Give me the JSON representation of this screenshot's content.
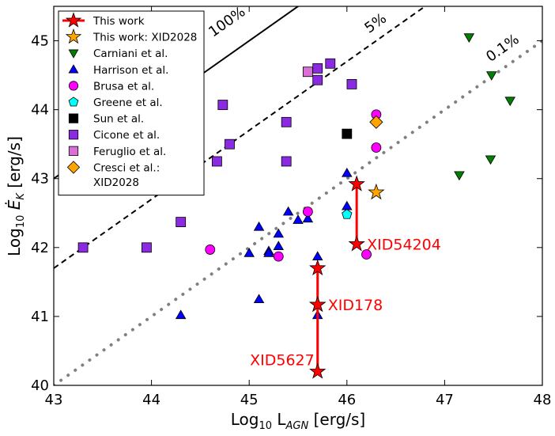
{
  "chart_data": {
    "type": "scatter",
    "xlabel_main": "Log",
    "xlabel_sub": "10",
    "xlabel_rest": " L",
    "xlabel_agn": "AGN",
    "xlabel_units": " [erg/s]",
    "ylabel_main": "Log",
    "ylabel_sub": "10",
    "ylabel_e": " Ė",
    "ylabel_k": "K",
    "ylabel_units": " [erg/s]",
    "xlim": [
      43,
      48
    ],
    "ylim": [
      40,
      45.5
    ],
    "xticks": [
      43,
      44,
      45,
      46,
      47,
      48
    ],
    "yticks": [
      40,
      41,
      42,
      43,
      44,
      45
    ],
    "lines": [
      {
        "name": "100%",
        "label": "100%",
        "offset": 0,
        "style": "solid"
      },
      {
        "name": "5%",
        "label": "5%",
        "offset": -1.3,
        "style": "dashed"
      },
      {
        "name": "0.1%",
        "label": "0.1%",
        "offset": -3.0,
        "style": "dotted"
      }
    ],
    "legend": [
      {
        "label": "This work",
        "marker": "star",
        "color": "#ff0000",
        "line": true
      },
      {
        "label": "This work: XID2028",
        "marker": "star",
        "color": "#ffa500"
      },
      {
        "label": "Carniani et al.",
        "marker": "tri-down",
        "color": "#008000"
      },
      {
        "label": "Harrison et al.",
        "marker": "tri-up",
        "color": "#0000ff"
      },
      {
        "label": "Brusa et al.",
        "marker": "circle",
        "color": "#ff00ff"
      },
      {
        "label": "Greene et al.",
        "marker": "pentagon",
        "color": "#00ffff"
      },
      {
        "label": "Sun et al.",
        "marker": "square",
        "color": "#000000"
      },
      {
        "label": "Cicone et al.",
        "marker": "square",
        "color": "#8a2be2"
      },
      {
        "label": "Feruglio et al.",
        "marker": "square",
        "color": "#da70d6"
      },
      {
        "label": "Cresci et al.:",
        "label2": " XID2028",
        "marker": "diamond",
        "color": "#ffa500"
      }
    ],
    "series": [
      {
        "name": "Cicone et al.",
        "marker": "square",
        "color": "#8a2be2",
        "points": [
          [
            43.3,
            42.0
          ],
          [
            43.95,
            42.0
          ],
          [
            44.3,
            42.37
          ],
          [
            44.67,
            43.25
          ],
          [
            44.73,
            44.07
          ],
          [
            44.8,
            43.5
          ],
          [
            45.38,
            43.82
          ],
          [
            45.38,
            43.25
          ],
          [
            45.7,
            44.6
          ],
          [
            45.7,
            44.43
          ],
          [
            45.83,
            44.67
          ],
          [
            46.05,
            44.37
          ]
        ]
      },
      {
        "name": "Feruglio et al.",
        "marker": "square",
        "color": "#da70d6",
        "points": [
          [
            45.6,
            44.55
          ]
        ]
      },
      {
        "name": "Sun et al.",
        "marker": "square",
        "color": "#000000",
        "points": [
          [
            46.0,
            43.65
          ]
        ]
      },
      {
        "name": "Carniani et al.",
        "marker": "tri-down",
        "color": "#008000",
        "points": [
          [
            47.25,
            45.05
          ],
          [
            47.48,
            44.5
          ],
          [
            47.67,
            44.13
          ],
          [
            47.15,
            43.05
          ],
          [
            47.47,
            43.28
          ]
        ]
      },
      {
        "name": "Harrison et al.",
        "marker": "tri-up",
        "color": "#0000ff",
        "points": [
          [
            44.3,
            41.02
          ],
          [
            45.0,
            41.92
          ],
          [
            45.1,
            42.3
          ],
          [
            45.1,
            41.25
          ],
          [
            45.2,
            41.95
          ],
          [
            45.2,
            41.92
          ],
          [
            45.3,
            42.2
          ],
          [
            45.3,
            42.02
          ],
          [
            45.4,
            42.52
          ],
          [
            45.5,
            42.4
          ],
          [
            45.6,
            42.42
          ],
          [
            45.7,
            41.87
          ],
          [
            45.7,
            41.02
          ],
          [
            46.0,
            43.08
          ],
          [
            46.0,
            42.6
          ]
        ]
      },
      {
        "name": "Greene et al.",
        "marker": "pentagon",
        "color": "#00ffff",
        "points": [
          [
            46.0,
            42.48
          ]
        ]
      },
      {
        "name": "Brusa et al.",
        "marker": "circle",
        "color": "#ff00ff",
        "points": [
          [
            44.6,
            41.97
          ],
          [
            45.3,
            41.87
          ],
          [
            45.6,
            42.52
          ],
          [
            46.2,
            41.9
          ],
          [
            46.3,
            43.93
          ],
          [
            46.3,
            43.45
          ]
        ]
      },
      {
        "name": "Cresci et al.: XID2028",
        "marker": "diamond",
        "color": "#ffa500",
        "points": [
          [
            46.3,
            43.82
          ]
        ]
      },
      {
        "name": "This work: XID2028",
        "marker": "star",
        "color": "#ffa500",
        "points": [
          [
            46.3,
            42.8
          ]
        ]
      }
    ],
    "this_work_pairs": [
      {
        "x": 45.7,
        "y_high": 41.17,
        "y_low": 40.2,
        "label": "XID5627",
        "label_side": "left-low"
      },
      {
        "x": 45.7,
        "y_high": 41.7,
        "y_low": 41.17,
        "label": "XID178",
        "label_side": "right"
      },
      {
        "x": 46.1,
        "y_high": 42.92,
        "y_low": 42.05,
        "label": "XID54204",
        "label_side": "right"
      }
    ]
  }
}
